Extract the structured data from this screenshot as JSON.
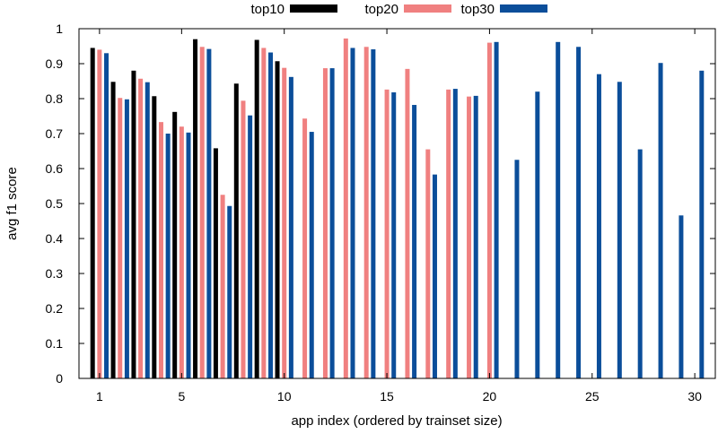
{
  "chart_data": {
    "type": "bar",
    "title": "",
    "xlabel": "app index (ordered by trainset size)",
    "ylabel": "avg f1 score",
    "ylim": [
      0,
      1
    ],
    "yticks": [
      0,
      0.1,
      0.2,
      0.3,
      0.4,
      0.5,
      0.6,
      0.7,
      0.8,
      0.9,
      1
    ],
    "ytick_labels": [
      "0",
      "0.1",
      "0.2",
      "0.3",
      "0.4",
      "0.5",
      "0.6",
      "0.7",
      "0.8",
      "0.9",
      "1"
    ],
    "xlim": [
      0,
      31
    ],
    "xticks": [
      1,
      5,
      10,
      15,
      20,
      25,
      30
    ],
    "xtick_labels": [
      "1",
      "5",
      "10",
      "15",
      "20",
      "25",
      "30"
    ],
    "grid": false,
    "legend_position": "top-center",
    "categories": [
      1,
      2,
      3,
      4,
      5,
      6,
      7,
      8,
      9,
      10,
      11,
      12,
      13,
      14,
      15,
      16,
      17,
      18,
      19,
      20,
      21,
      22,
      23,
      24,
      25,
      26,
      27,
      28,
      29,
      30
    ],
    "series": [
      {
        "name": "top10",
        "color": "#000000",
        "values": [
          0.945,
          0.848,
          0.88,
          0.807,
          0.762,
          0.97,
          0.658,
          0.843,
          0.968,
          0.907,
          null,
          null,
          null,
          null,
          null,
          null,
          null,
          null,
          null,
          null,
          null,
          null,
          null,
          null,
          null,
          null,
          null,
          null,
          null,
          null
        ]
      },
      {
        "name": "top20",
        "color": "#f08080",
        "values": [
          0.94,
          0.802,
          0.857,
          0.733,
          0.72,
          0.948,
          0.525,
          0.794,
          0.945,
          0.888,
          0.743,
          0.887,
          0.972,
          0.948,
          0.826,
          0.885,
          0.655,
          0.826,
          0.806,
          0.96,
          null,
          null,
          null,
          null,
          null,
          null,
          null,
          null,
          null,
          null
        ]
      },
      {
        "name": "top30",
        "color": "#0b4e9a",
        "values": [
          0.93,
          0.798,
          0.847,
          0.7,
          0.703,
          0.942,
          0.493,
          0.752,
          0.932,
          0.862,
          0.705,
          0.887,
          0.945,
          0.941,
          0.818,
          0.782,
          0.583,
          0.828,
          0.808,
          0.962,
          0.625,
          0.82,
          0.962,
          0.948,
          0.87,
          0.848,
          0.655,
          0.902,
          0.466,
          0.88
        ]
      }
    ]
  }
}
